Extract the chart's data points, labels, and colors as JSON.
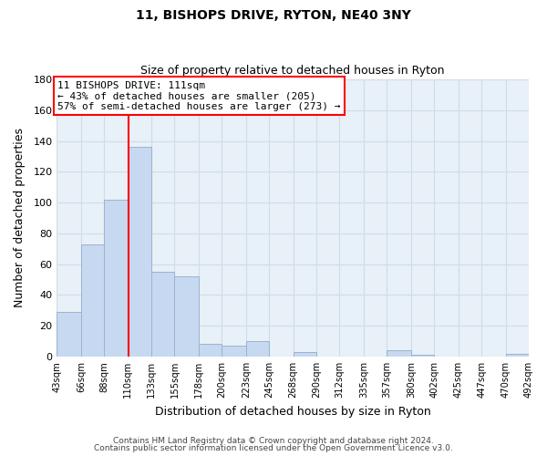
{
  "title": "11, BISHOPS DRIVE, RYTON, NE40 3NY",
  "subtitle": "Size of property relative to detached houses in Ryton",
  "xlabel": "Distribution of detached houses by size in Ryton",
  "ylabel": "Number of detached properties",
  "footer_line1": "Contains HM Land Registry data © Crown copyright and database right 2024.",
  "footer_line2": "Contains public sector information licensed under the Open Government Licence v3.0.",
  "bar_edges": [
    43,
    66,
    88,
    110,
    133,
    155,
    178,
    200,
    223,
    245,
    268,
    290,
    312,
    335,
    357,
    380,
    402,
    425,
    447,
    470,
    492
  ],
  "bar_heights": [
    29,
    73,
    102,
    136,
    55,
    52,
    8,
    7,
    10,
    0,
    3,
    0,
    0,
    0,
    4,
    1,
    0,
    0,
    0,
    2
  ],
  "bar_color": "#c6d9f1",
  "bar_edge_color": "#9ab3d0",
  "property_line_x": 111,
  "property_line_color": "red",
  "annotation_text": "11 BISHOPS DRIVE: 111sqm\n← 43% of detached houses are smaller (205)\n57% of semi-detached houses are larger (273) →",
  "annotation_box_color": "white",
  "annotation_box_edge_color": "red",
  "ylim": [
    0,
    180
  ],
  "yticks": [
    0,
    20,
    40,
    60,
    80,
    100,
    120,
    140,
    160,
    180
  ],
  "tick_labels": [
    "43sqm",
    "66sqm",
    "88sqm",
    "110sqm",
    "133sqm",
    "155sqm",
    "178sqm",
    "200sqm",
    "223sqm",
    "245sqm",
    "268sqm",
    "290sqm",
    "312sqm",
    "335sqm",
    "357sqm",
    "380sqm",
    "402sqm",
    "425sqm",
    "447sqm",
    "470sqm",
    "492sqm"
  ],
  "grid_color": "#d0dce8",
  "background_color": "#e8f0f8"
}
